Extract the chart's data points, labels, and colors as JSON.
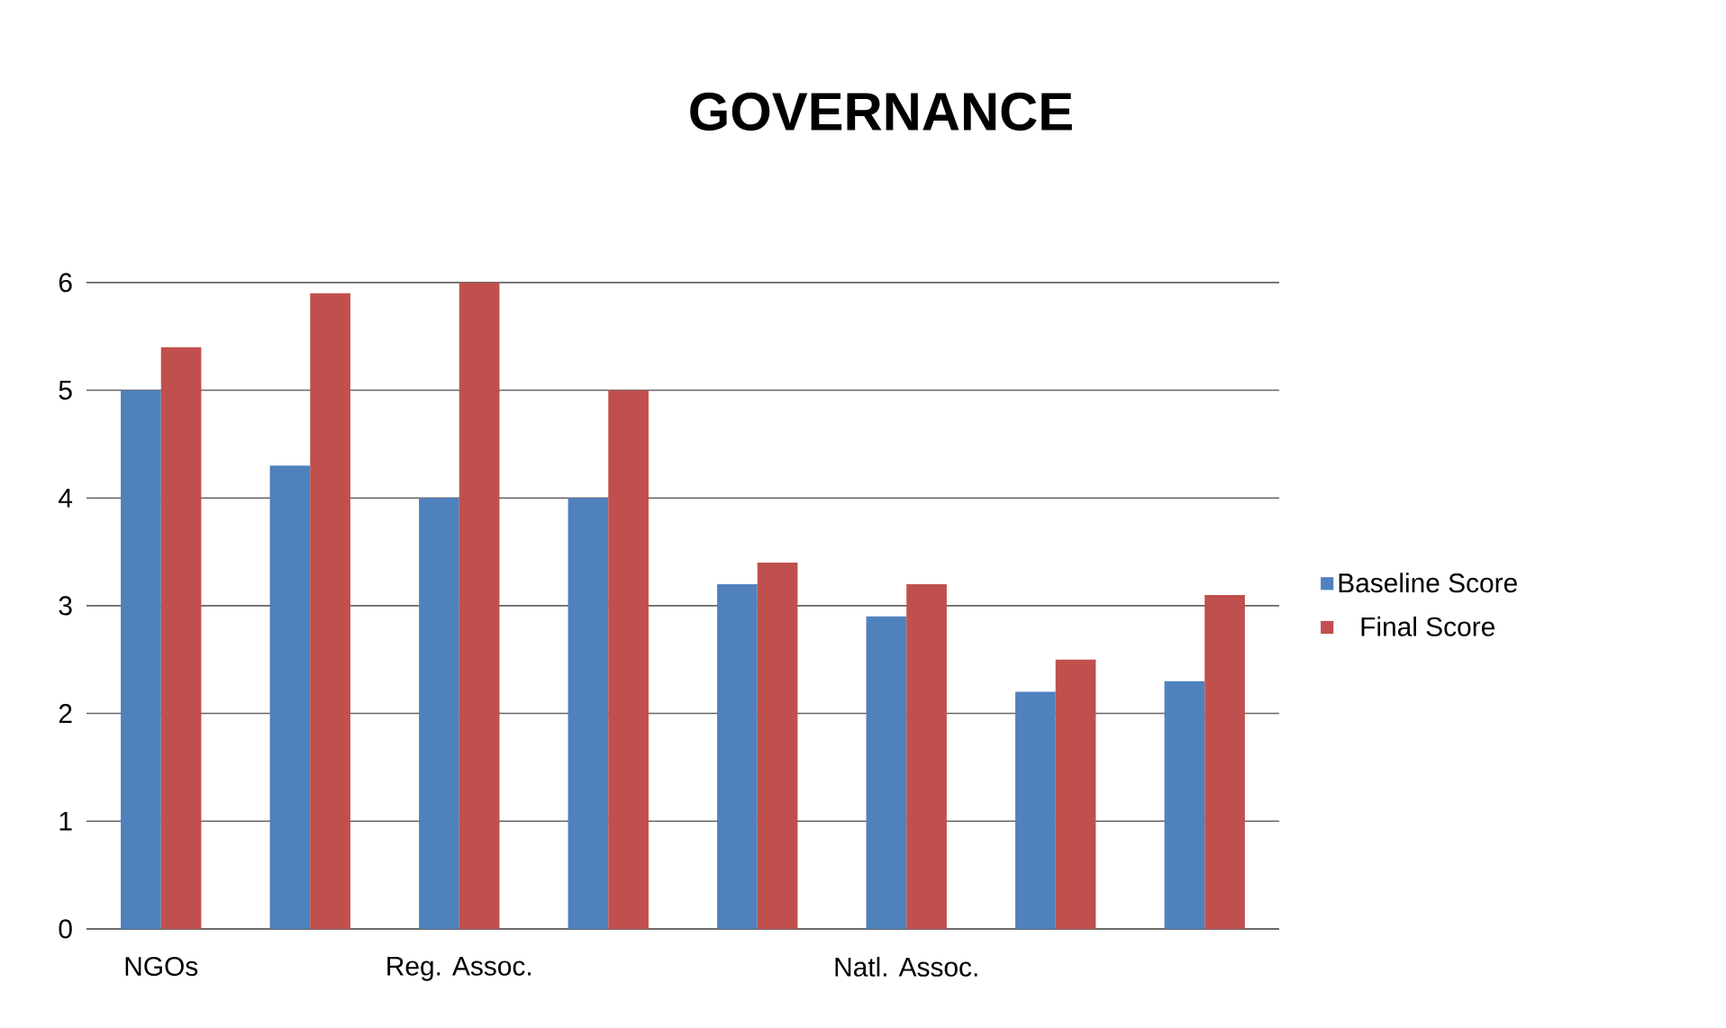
{
  "chart_data": {
    "type": "bar",
    "title": "GOVERNANCE",
    "categories": [
      "NGOs",
      null,
      "Reg. Assoc.",
      null,
      null,
      "Natl. Assoc.",
      null,
      null
    ],
    "series": [
      {
        "name": "Baseline Score",
        "color": "#4f81bd",
        "values": [
          5,
          4.3,
          4,
          4,
          3.2,
          2.9,
          2.2,
          2.3
        ]
      },
      {
        "name": "Final Score",
        "color": "#c0504d",
        "values": [
          5.4,
          5.9,
          6,
          5,
          3.4,
          3.2,
          2.5,
          3.1
        ]
      }
    ],
    "ylim": [
      0,
      6
    ],
    "yticks": [
      0,
      1,
      2,
      3,
      4,
      5,
      6
    ],
    "grid": "y",
    "legend": "right"
  }
}
